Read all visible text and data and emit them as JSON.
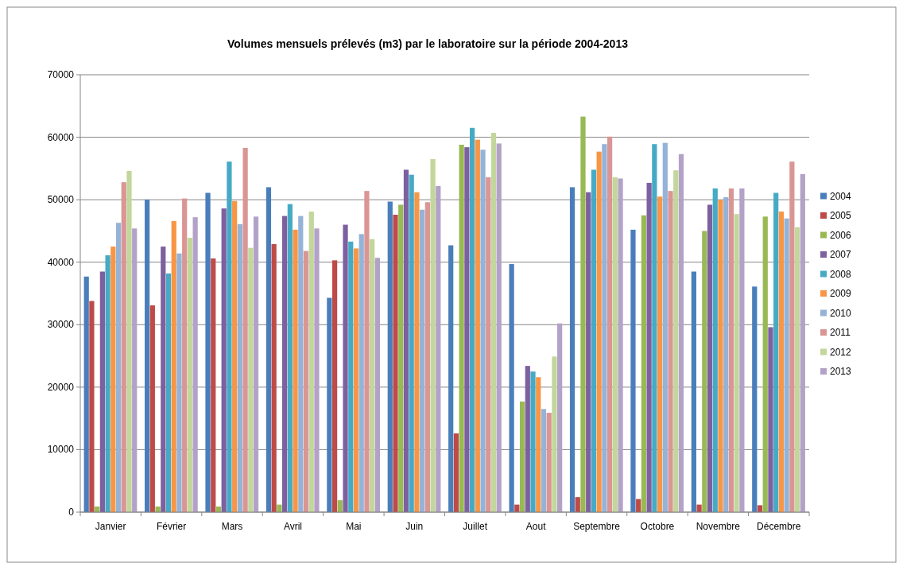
{
  "chart_data": {
    "type": "bar",
    "title": "Volumes mensuels prélevés (m3) par le laboratoire sur la période 2004-2013",
    "categories": [
      "Janvier",
      "Février",
      "Mars",
      "Avril",
      "Mai",
      "Juin",
      "Juillet",
      "Aout",
      "Septembre",
      "Octobre",
      "Novembre",
      "Décembre"
    ],
    "series": [
      {
        "name": "2004",
        "color": "#4a7ebb",
        "values": [
          37700,
          50000,
          51100,
          52000,
          34300,
          49700,
          42700,
          39700,
          52000,
          45200,
          38500,
          36100
        ]
      },
      {
        "name": "2005",
        "color": "#be4b48",
        "values": [
          33800,
          33100,
          40600,
          42900,
          40300,
          47600,
          12600,
          1200,
          2400,
          2100,
          1200,
          1100
        ]
      },
      {
        "name": "2006",
        "color": "#98b954",
        "values": [
          900,
          900,
          900,
          1200,
          1900,
          49200,
          58800,
          17700,
          63300,
          47500,
          45000,
          47300
        ]
      },
      {
        "name": "2007",
        "color": "#7d60a0",
        "values": [
          38500,
          42500,
          48600,
          47400,
          46000,
          54800,
          58400,
          23400,
          51200,
          52700,
          49200,
          29600
        ]
      },
      {
        "name": "2008",
        "color": "#46aac5",
        "values": [
          41100,
          38200,
          56100,
          49300,
          43300,
          54000,
          61500,
          22500,
          54800,
          58900,
          51800,
          51100
        ]
      },
      {
        "name": "2009",
        "color": "#f79646",
        "values": [
          42500,
          46600,
          49800,
          45200,
          42200,
          51200,
          59600,
          21600,
          57700,
          50500,
          50000,
          48100
        ]
      },
      {
        "name": "2010",
        "color": "#95b3d7",
        "values": [
          46300,
          41400,
          46100,
          47400,
          44500,
          48400,
          58000,
          16500,
          58900,
          59100,
          50400,
          47000
        ]
      },
      {
        "name": "2011",
        "color": "#d99694",
        "values": [
          52800,
          50200,
          58300,
          41800,
          51400,
          49600,
          53600,
          15900,
          60100,
          51400,
          51800,
          56100
        ]
      },
      {
        "name": "2012",
        "color": "#c3d69b",
        "values": [
          54600,
          43900,
          42300,
          48100,
          43700,
          56500,
          60700,
          24900,
          53600,
          54700,
          47700,
          45600
        ]
      },
      {
        "name": "2013",
        "color": "#b3a2c7",
        "values": [
          45400,
          47200,
          47300,
          45400,
          40700,
          52200,
          59000,
          30200,
          53400,
          57300,
          51800,
          54100
        ]
      }
    ],
    "ylim": [
      0,
      70000
    ],
    "yticks": [
      0,
      10000,
      20000,
      30000,
      40000,
      50000,
      60000,
      70000
    ],
    "grid": "y",
    "legend": "right"
  }
}
